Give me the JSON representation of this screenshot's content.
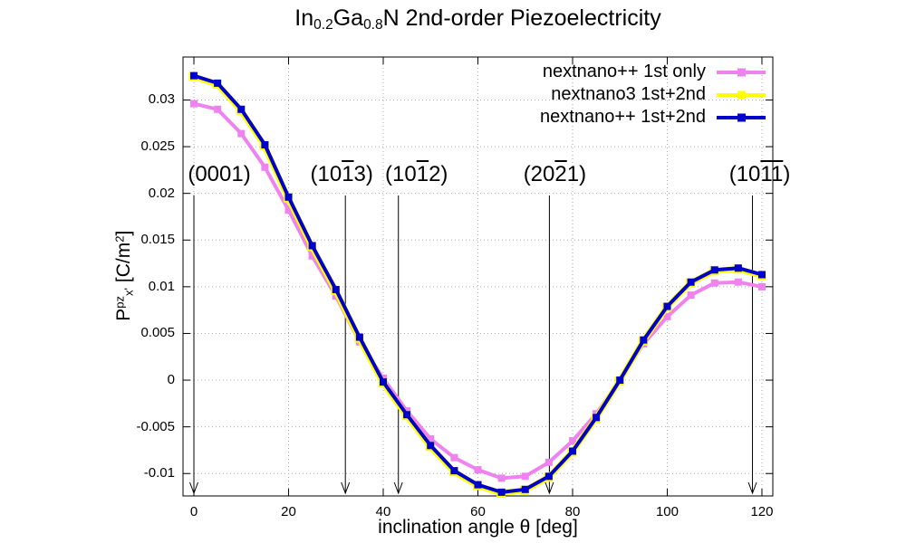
{
  "chart_data": {
    "type": "line",
    "title": "In0.2Ga0.8N 2nd-order Piezoelectricity",
    "title_parts": [
      {
        "t": "In"
      },
      {
        "t": "0.2",
        "style": "sub"
      },
      {
        "t": "Ga"
      },
      {
        "t": "0.8",
        "style": "sub"
      },
      {
        "t": "N 2nd-order Piezoelectricity"
      }
    ],
    "xlabel": "inclination angle θ [deg]",
    "ylabel": "Ppz x' [C/m2]",
    "ylabel_parts": [
      {
        "t": "P"
      },
      {
        "t": "pz",
        "style": "sup"
      },
      {
        "t": "x'",
        "style": "sub"
      },
      {
        "t": " [C/m"
      },
      {
        "t": "2",
        "style": "sup"
      },
      {
        "t": "]"
      }
    ],
    "xlim": [
      -2.3,
      122.3
    ],
    "ylim": [
      -0.0124,
      0.0346
    ],
    "grid": true,
    "legend_position": "top-right",
    "marker": "square",
    "xticks": [
      {
        "v": 0,
        "label": "0"
      },
      {
        "v": 20,
        "label": "20"
      },
      {
        "v": 40,
        "label": "40"
      },
      {
        "v": 60,
        "label": "60"
      },
      {
        "v": 80,
        "label": "80"
      },
      {
        "v": 100,
        "label": "100"
      },
      {
        "v": 120,
        "label": "120"
      }
    ],
    "yticks": [
      {
        "v": 0.03,
        "label": "0.03"
      },
      {
        "v": 0.025,
        "label": "0.025"
      },
      {
        "v": 0.02,
        "label": "0.02"
      },
      {
        "v": 0.015,
        "label": "0.015"
      },
      {
        "v": 0.01,
        "label": "0.01"
      },
      {
        "v": 0.005,
        "label": "0.005"
      },
      {
        "v": 0,
        "label": "0"
      },
      {
        "v": -0.005,
        "label": "-0.005"
      },
      {
        "v": -0.01,
        "label": "-0.01"
      }
    ],
    "x": [
      0,
      5,
      10,
      15,
      20,
      25,
      30,
      35,
      40,
      45,
      50,
      55,
      60,
      65,
      70,
      75,
      80,
      85,
      90,
      95,
      100,
      105,
      110,
      115,
      120
    ],
    "series": [
      {
        "name": "nextnano++ 1st only",
        "color": "#ee82ee",
        "values": [
          0.0296,
          0.029,
          0.0264,
          0.0228,
          0.0182,
          0.0133,
          0.009,
          0.0041,
          0.0002,
          -0.0033,
          -0.0063,
          -0.0083,
          -0.0096,
          -0.0105,
          -0.0103,
          -0.0088,
          -0.0065,
          -0.0036,
          0.0,
          0.0039,
          0.0068,
          0.0091,
          0.0104,
          0.0105,
          0.01
        ]
      },
      {
        "name": "nextnano3 1st+2nd",
        "color": "#ffff00",
        "values": [
          0.0326,
          0.0318,
          0.029,
          0.0252,
          0.0196,
          0.0144,
          0.0097,
          0.0046,
          -0.0002,
          -0.0037,
          -0.007,
          -0.0097,
          -0.0112,
          -0.012,
          -0.0117,
          -0.0103,
          -0.0076,
          -0.004,
          0.0,
          0.0043,
          0.0079,
          0.0105,
          0.0118,
          0.012,
          0.0113
        ]
      },
      {
        "name": "nextnano++ 1st+2nd",
        "color": "#0000cd",
        "values": [
          0.0326,
          0.0318,
          0.029,
          0.0252,
          0.0196,
          0.0144,
          0.0097,
          0.0046,
          -0.0002,
          -0.0037,
          -0.007,
          -0.0097,
          -0.0112,
          -0.012,
          -0.0117,
          -0.0103,
          -0.0076,
          -0.004,
          0.0,
          0.0043,
          0.0079,
          0.0105,
          0.0118,
          0.012,
          0.0113
        ]
      }
    ],
    "annotations": [
      {
        "text": "(0001)",
        "theta": 0,
        "label_dx": 28,
        "parts": [
          {
            "t": "(0001)"
          }
        ]
      },
      {
        "text": "(10-13)",
        "theta": 32,
        "label_dx": -4,
        "parts": [
          {
            "t": "(10"
          },
          {
            "t": "1",
            "style": "overline"
          },
          {
            "t": "3)"
          }
        ]
      },
      {
        "text": "(10-12)",
        "theta": 43.2,
        "label_dx": 20,
        "parts": [
          {
            "t": "(10"
          },
          {
            "t": "1",
            "style": "overline"
          },
          {
            "t": "2)"
          }
        ]
      },
      {
        "text": "(20-21)",
        "theta": 75.1,
        "label_dx": 6,
        "parts": [
          {
            "t": "(20"
          },
          {
            "t": "2",
            "style": "overline"
          },
          {
            "t": "1)"
          }
        ]
      },
      {
        "text": "(10-1-1)",
        "theta": 118,
        "label_dx": 8,
        "parts": [
          {
            "t": "(10"
          },
          {
            "t": "1",
            "style": "overline"
          },
          {
            "t": "1",
            "style": "overline"
          },
          {
            "t": ")"
          }
        ]
      }
    ]
  },
  "colors": {
    "background": "#ffffff",
    "axis": "#000000",
    "grid": "#a8a8a8",
    "series_pink": "#ee82ee",
    "series_yellow": "#ffff00",
    "series_blue": "#0000cd"
  }
}
